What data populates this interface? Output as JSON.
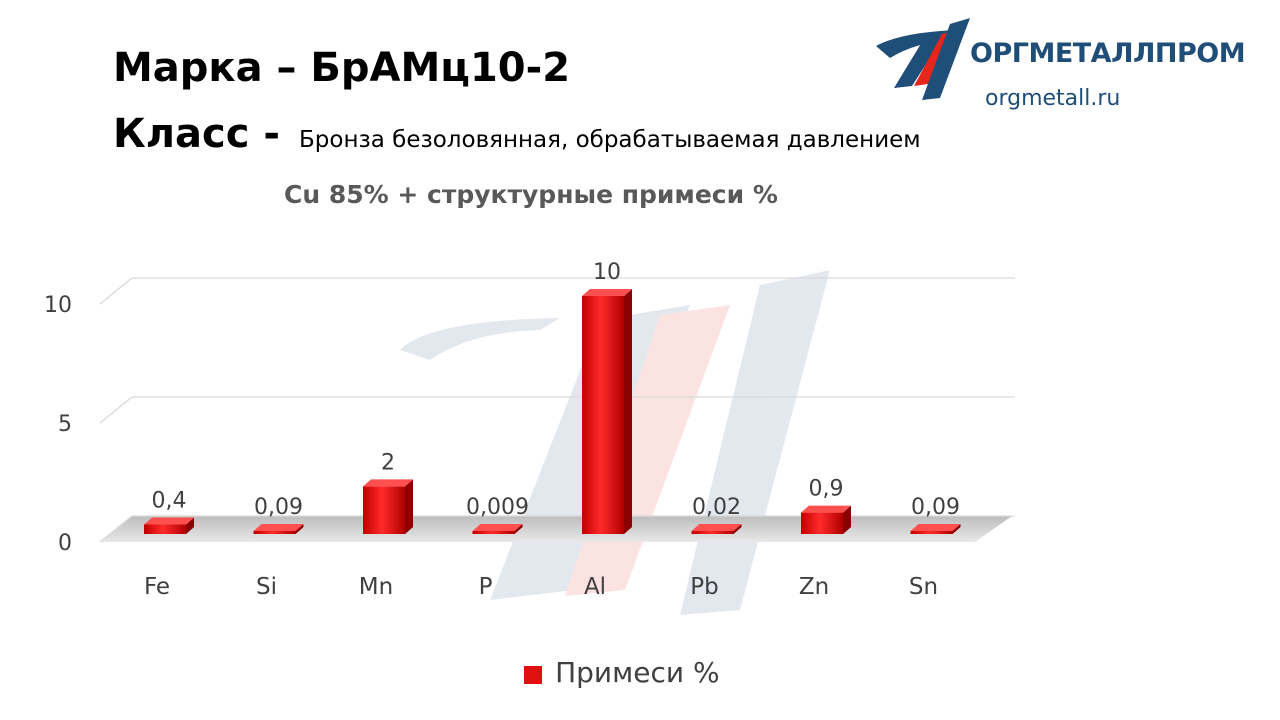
{
  "header": {
    "title": "Марка – БрАМц10-2",
    "class_label": "Класс -",
    "class_value": "Бронза безоловянная, обрабатываемая давлением"
  },
  "logo": {
    "name": "ОРГМЕТАЛЛПРОМ",
    "url": "orgmetall.ru",
    "colors": {
      "navy": "#1f4e79",
      "red": "#e4261c"
    }
  },
  "chart_data": {
    "type": "bar",
    "style": "3d",
    "title": "Cu 85% + структурные примеси %",
    "categories": [
      "Fe",
      "Si",
      "Mn",
      "P",
      "Al",
      "Pb",
      "Zn",
      "Sn"
    ],
    "series": [
      {
        "name": "Примеси %",
        "values": [
          0.4,
          0.09,
          2,
          0.009,
          10,
          0.02,
          0.9,
          0.09
        ],
        "labels": [
          "0,4",
          "0,09",
          "2",
          "0,009",
          "10",
          "0,02",
          "0,9",
          "0,09"
        ],
        "color": "#e01010"
      }
    ],
    "y_ticks": [
      "0",
      "5",
      "10"
    ],
    "ylim": [
      0,
      10
    ],
    "grid": true,
    "legend_position": "bottom"
  }
}
